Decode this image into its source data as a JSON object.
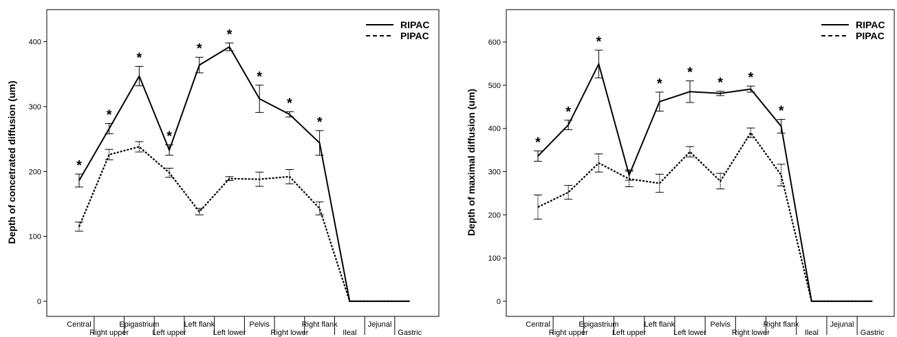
{
  "chart_data": [
    {
      "type": "line",
      "ylabel": "Depth of concetrated diffusion (um)",
      "categories": [
        "Central",
        "Right upper",
        "Epigastrium",
        "Left upper",
        "Left flank",
        "Left lower",
        "Pelvis",
        "Right lower",
        "Right flank",
        "Ileal",
        "Jejunal",
        "Gastric"
      ],
      "ylim": [
        0,
        440
      ],
      "yticks": [
        0,
        100,
        200,
        300,
        400
      ],
      "series": [
        {
          "name": "RIPAC",
          "style": "solid",
          "values": [
            186,
            266,
            347,
            233,
            364,
            392,
            312,
            288,
            244,
            0,
            0,
            0
          ],
          "errors": [
            10,
            8,
            15,
            8,
            12,
            6,
            21,
            4,
            19,
            0,
            0,
            0
          ]
        },
        {
          "name": "PIPAC",
          "style": "dashed",
          "values": [
            115,
            226,
            238,
            198,
            138,
            189,
            188,
            192,
            143,
            0,
            0,
            0
          ],
          "errors": [
            7,
            8,
            8,
            7,
            5,
            3,
            11,
            11,
            10,
            0,
            0,
            0
          ]
        }
      ],
      "significance_marker": "*",
      "significant_categories": [
        0,
        1,
        2,
        3,
        4,
        5,
        6,
        7,
        8
      ]
    },
    {
      "type": "line",
      "ylabel": "Depth of maximal diffusion (um)",
      "categories": [
        "Central",
        "Right upper",
        "Epigastrium",
        "Left upper",
        "Left flank",
        "Left lower",
        "Pelvis",
        "Right lower",
        "Right flank",
        "Ileal",
        "Jejunal",
        "Gastric"
      ],
      "ylim": [
        0,
        660
      ],
      "yticks": [
        0,
        100,
        200,
        300,
        400,
        500,
        600
      ],
      "series": [
        {
          "name": "RIPAC",
          "style": "solid",
          "values": [
            336,
            408,
            549,
            292,
            462,
            485,
            481,
            491,
            405,
            0,
            0,
            0
          ],
          "errors": [
            12,
            11,
            32,
            12,
            22,
            25,
            5,
            7,
            16,
            0,
            0,
            0
          ]
        },
        {
          "name": "PIPAC",
          "style": "dashed",
          "values": [
            218,
            252,
            320,
            283,
            273,
            346,
            278,
            390,
            292,
            0,
            0,
            0
          ],
          "errors": [
            28,
            16,
            21,
            18,
            21,
            12,
            18,
            11,
            25,
            0,
            0,
            0
          ]
        }
      ],
      "significance_marker": "*",
      "significant_categories": [
        0,
        1,
        2,
        4,
        5,
        6,
        7,
        8
      ]
    }
  ]
}
